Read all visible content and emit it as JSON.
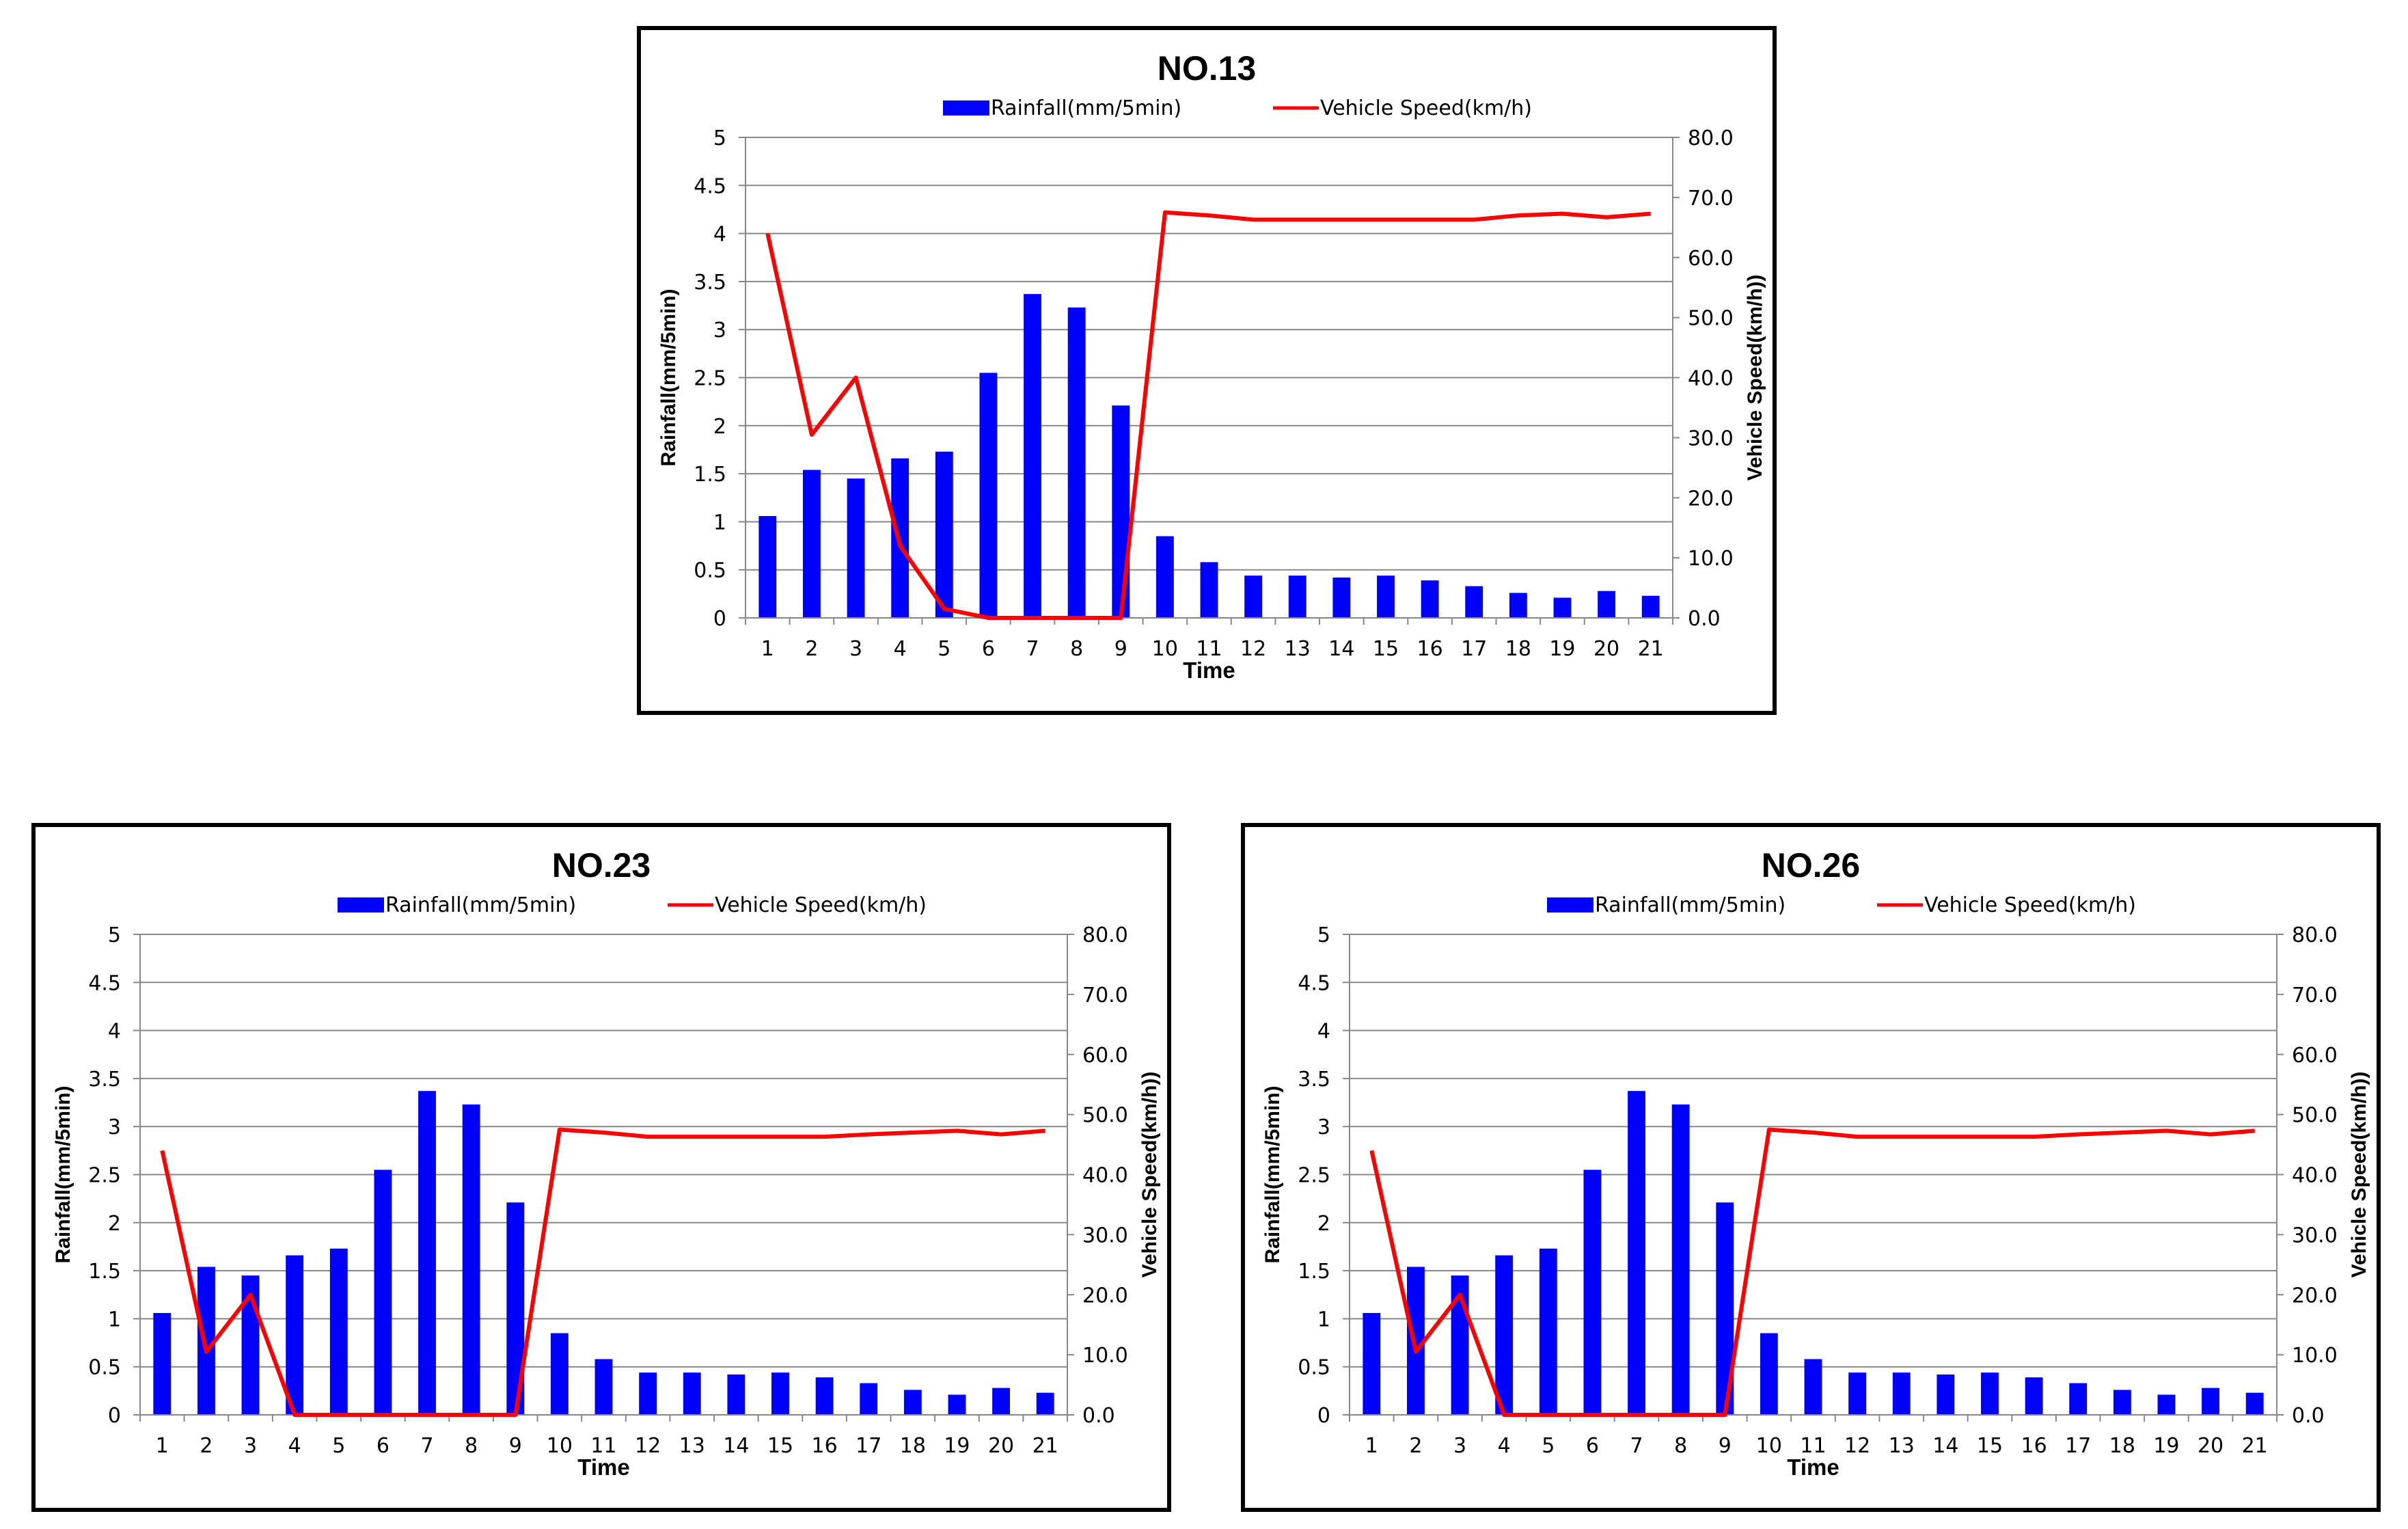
{
  "chart_data": [
    {
      "type": "bar+line",
      "title": "NO.13",
      "xlabel": "Time",
      "ylabel": "Rainfall(mm/5min)",
      "y2label": "Vehicle Speed(km/h))",
      "legend": [
        "Rainfall(mm/5min)",
        "Vehicle Speed(km/h)"
      ],
      "legend_position": "top",
      "grid": true,
      "ylim": [
        0,
        5
      ],
      "y2lim": [
        0,
        80
      ],
      "yticks": [
        "0",
        "0.5",
        "1",
        "1.5",
        "2",
        "2.5",
        "3",
        "3.5",
        "4",
        "4.5",
        "5"
      ],
      "y2ticks": [
        "0.0",
        "10.0",
        "20.0",
        "30.0",
        "40.0",
        "50.0",
        "60.0",
        "70.0",
        "80.0"
      ],
      "categories": [
        "1",
        "2",
        "3",
        "4",
        "5",
        "6",
        "7",
        "8",
        "9",
        "10",
        "11",
        "12",
        "13",
        "14",
        "15",
        "16",
        "17",
        "18",
        "19",
        "20",
        "21"
      ],
      "series": [
        {
          "name": "Rainfall(mm/5min)",
          "type": "bar",
          "axis": "left",
          "color": "#0000ff",
          "values": [
            1.06,
            1.54,
            1.45,
            1.66,
            1.73,
            2.55,
            3.37,
            3.23,
            2.21,
            0.85,
            0.58,
            0.44,
            0.44,
            0.42,
            0.44,
            0.39,
            0.33,
            0.26,
            0.21,
            0.28,
            0.23
          ]
        },
        {
          "name": "Vehicle Speed(km/h)",
          "type": "line",
          "axis": "right",
          "color": "#ff0000",
          "values": [
            64.0,
            30.5,
            40.0,
            12.0,
            1.5,
            0,
            0,
            0,
            0,
            67.5,
            67.0,
            66.3,
            66.3,
            66.3,
            66.3,
            66.3,
            66.3,
            67.0,
            67.3,
            66.7,
            67.3
          ]
        }
      ]
    },
    {
      "type": "bar+line",
      "title": "NO.23",
      "xlabel": "Time",
      "ylabel": "Rainfall(mm/5min)",
      "y2label": "Vehicle Speed(km/h))",
      "legend": [
        "Rainfall(mm/5min)",
        "Vehicle Speed(km/h)"
      ],
      "legend_position": "top",
      "grid": true,
      "ylim": [
        0,
        5
      ],
      "y2lim": [
        0,
        80
      ],
      "yticks": [
        "0",
        "0.5",
        "1",
        "1.5",
        "2",
        "2.5",
        "3",
        "3.5",
        "4",
        "4.5",
        "5"
      ],
      "y2ticks": [
        "0.0",
        "10.0",
        "20.0",
        "30.0",
        "40.0",
        "50.0",
        "60.0",
        "70.0",
        "80.0"
      ],
      "categories": [
        "1",
        "2",
        "3",
        "4",
        "5",
        "6",
        "7",
        "8",
        "9",
        "10",
        "11",
        "12",
        "13",
        "14",
        "15",
        "16",
        "17",
        "18",
        "19",
        "20",
        "21"
      ],
      "series": [
        {
          "name": "Rainfall(mm/5min)",
          "type": "bar",
          "axis": "left",
          "color": "#0000ff",
          "values": [
            1.06,
            1.54,
            1.45,
            1.66,
            1.73,
            2.55,
            3.37,
            3.23,
            2.21,
            0.85,
            0.58,
            0.44,
            0.44,
            0.42,
            0.44,
            0.39,
            0.33,
            0.26,
            0.21,
            0.28,
            0.23
          ]
        },
        {
          "name": "Vehicle Speed(km/h)",
          "type": "line",
          "axis": "right",
          "color": "#ff0000",
          "values": [
            44.0,
            10.5,
            20.0,
            0,
            0,
            0,
            0,
            0,
            0,
            47.5,
            47.0,
            46.3,
            46.3,
            46.3,
            46.3,
            46.3,
            46.7,
            47.0,
            47.3,
            46.7,
            47.3
          ]
        }
      ]
    },
    {
      "type": "bar+line",
      "title": "NO.26",
      "xlabel": "Time",
      "ylabel": "Rainfall(mm/5min)",
      "y2label": "Vehicle Speed(km/h))",
      "legend": [
        "Rainfall(mm/5min)",
        "Vehicle Speed(km/h)"
      ],
      "legend_position": "top",
      "grid": true,
      "ylim": [
        0,
        5
      ],
      "y2lim": [
        0,
        80
      ],
      "yticks": [
        "0",
        "0.5",
        "1",
        "1.5",
        "2",
        "2.5",
        "3",
        "3.5",
        "4",
        "4.5",
        "5"
      ],
      "y2ticks": [
        "0.0",
        "10.0",
        "20.0",
        "30.0",
        "40.0",
        "50.0",
        "60.0",
        "70.0",
        "80.0"
      ],
      "categories": [
        "1",
        "2",
        "3",
        "4",
        "5",
        "6",
        "7",
        "8",
        "9",
        "10",
        "11",
        "12",
        "13",
        "14",
        "15",
        "16",
        "17",
        "18",
        "19",
        "20",
        "21"
      ],
      "series": [
        {
          "name": "Rainfall(mm/5min)",
          "type": "bar",
          "axis": "left",
          "color": "#0000ff",
          "values": [
            1.06,
            1.54,
            1.45,
            1.66,
            1.73,
            2.55,
            3.37,
            3.23,
            2.21,
            0.85,
            0.58,
            0.44,
            0.44,
            0.42,
            0.44,
            0.39,
            0.33,
            0.26,
            0.21,
            0.28,
            0.23
          ]
        },
        {
          "name": "Vehicle Speed(km/h)",
          "type": "line",
          "axis": "right",
          "color": "#ff0000",
          "values": [
            44.0,
            10.5,
            20.0,
            0,
            0,
            0,
            0,
            0,
            0,
            47.5,
            47.0,
            46.3,
            46.3,
            46.3,
            46.3,
            46.3,
            46.7,
            47.0,
            47.3,
            46.7,
            47.3
          ]
        }
      ]
    }
  ]
}
